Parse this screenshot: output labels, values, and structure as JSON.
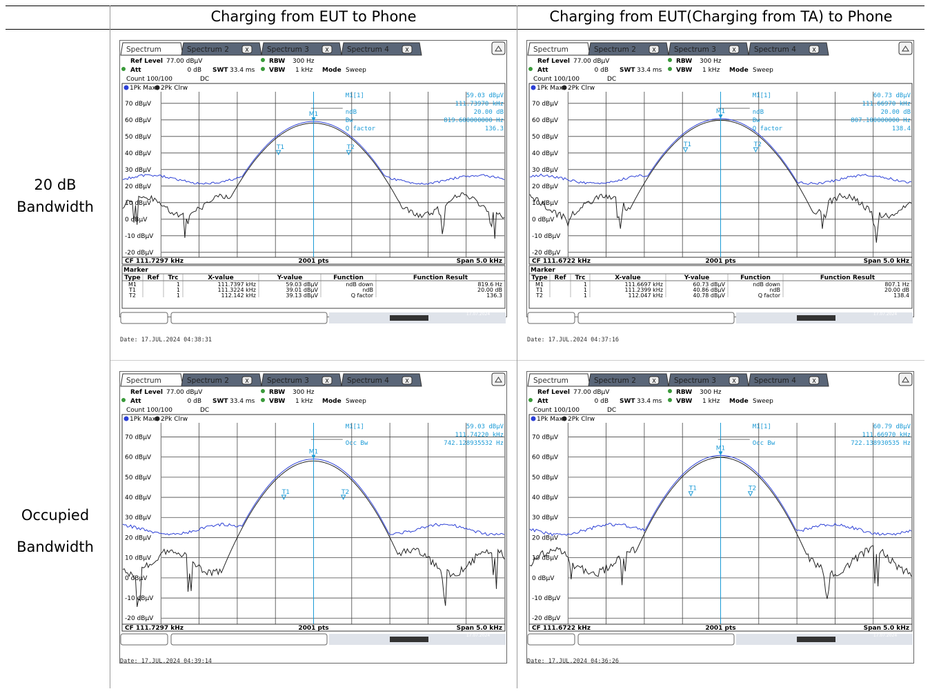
{
  "headers": {
    "col1": "Charging from EUT to Phone",
    "col2": "Charging from EUT(Charging from TA) to Phone"
  },
  "rows": {
    "row1_line1": "20 dB",
    "row1_line2": "Bandwidth",
    "row2_line1": "Occupied",
    "row2_line2": "Bandwidth"
  },
  "colors": {
    "trace1": "#2b3fd6",
    "trace2": "#222222",
    "marker": "#1a9ad6"
  },
  "common": {
    "tab1": "Spectrum",
    "tab2": "Spectrum 2",
    "tab3": "Spectrum 3",
    "tab4": "Spectrum 4",
    "tab_close": "X",
    "ref_level_label": "Ref Level",
    "ref_level": "77.00 dBµV",
    "att_label": "Att",
    "att": "0 dB",
    "swt_label": "SWT",
    "swt": "33.4 ms",
    "rbw_label": "RBW",
    "rbw": "300 Hz",
    "vbw_label": "VBW",
    "vbw": "1 kHz",
    "mode_label": "Mode",
    "mode": "Sweep",
    "count": "Count 100/100",
    "coupling": "DC",
    "trace_legend_1": "1Pk Max",
    "trace_legend_2": "2Pk Clrw",
    "pts": "2001 pts",
    "span": "Span 5.0 kHz",
    "y_labels": [
      "70 dBµV",
      "60 dBµV",
      "50 dBµV",
      "40 dBµV",
      "30 dBµV",
      "20 dBµV",
      "10 dBµV",
      "0 dBµV",
      "-10 dBµV",
      "-20 dBµV"
    ],
    "marker_title": "Marker",
    "marker_cols": [
      "Type",
      "Ref",
      "Trc",
      "X-value",
      "Y-value",
      "Function",
      "Function Result"
    ],
    "status": "17.07.2024",
    "m1_label": "M1[1]",
    "m1_tag": "M1",
    "t1_tag": "T1",
    "t2_tag": "T2",
    "ndb_label": "ndB",
    "bw_label": "Bw",
    "q_label": "Q factor",
    "occ_label": "Occ Bw"
  },
  "panels": [
    {
      "cf": "CF 111.7297 kHz",
      "date": "Date: 17.JUL.2024  04:38:31",
      "m1_level": "59.03 dBµV",
      "m1_freq": "111.73970 kHz",
      "ndb": "20.00 dB",
      "bw": "819.600000000 Hz",
      "q": "136.3",
      "rows": [
        [
          "M1",
          "",
          "1",
          "111.7397 kHz",
          "59.03 dBµV",
          "ndB down",
          "819.6 Hz"
        ],
        [
          "T1",
          "",
          "1",
          "111.3224 kHz",
          "39.01 dBµV",
          "ndB",
          "20.00 dB"
        ],
        [
          "T2",
          "",
          "1",
          "112.142 kHz",
          "39.13 dBµV",
          "Q factor",
          "136.3"
        ]
      ]
    },
    {
      "cf": "CF 111.6722 kHz",
      "date": "Date: 17.JUL.2024  04:37:16",
      "m1_level": "60.73 dBµV",
      "m1_freq": "111.66970 kHz",
      "ndb": "20.00 dB",
      "bw": "807.100000000 Hz",
      "q": "138.4",
      "rows": [
        [
          "M1",
          "",
          "1",
          "111.6697 kHz",
          "60.73 dBµV",
          "ndB down",
          "807.1 Hz"
        ],
        [
          "T1",
          "",
          "1",
          "111.2399 kHz",
          "40.86 dBµV",
          "ndB",
          "20.00 dB"
        ],
        [
          "T2",
          "",
          "1",
          "112.047 kHz",
          "40.78 dBµV",
          "Q factor",
          "138.4"
        ]
      ]
    },
    {
      "cf": "CF 111.7297 kHz",
      "date": "Date: 17.JUL.2024  04:39:14",
      "m1_level": "59.03 dBµV",
      "m1_freq": "111.74220 kHz",
      "occ": "742.128935532 Hz"
    },
    {
      "cf": "CF 111.6722 kHz",
      "date": "Date: 17.JUL.2024  04:36:26",
      "m1_level": "60.79 dBµV",
      "m1_freq": "111.66970 kHz",
      "occ": "722.138930535 Hz"
    }
  ]
}
